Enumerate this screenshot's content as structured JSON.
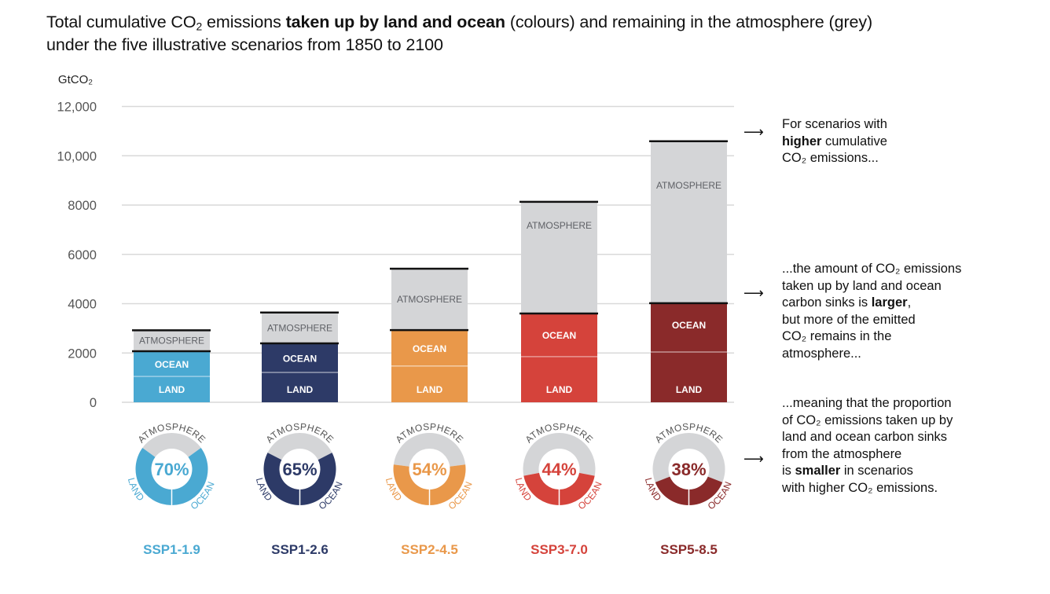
{
  "title": {
    "part1": "Total cumulative CO",
    "sub": "2",
    "part2": " emissions ",
    "bold": "taken up by land and ocean",
    "part3": " (colours) and remaining in the atmosphere (grey)",
    "line2": "under the five illustrative scenarios from 1850 to 2100"
  },
  "annotations": [
    {
      "arrow": "⟶",
      "lines": [
        {
          "pre": "For scenarios with",
          "bold": "",
          "post": ""
        },
        {
          "pre": "",
          "bold": "higher",
          "post": " cumulative"
        },
        {
          "pre": "CO₂ emissions...",
          "bold": "",
          "post": ""
        }
      ]
    },
    {
      "arrow": "⟶",
      "lines": [
        {
          "pre": "...the amount of CO₂ emissions",
          "bold": "",
          "post": ""
        },
        {
          "pre": "taken up by land and ocean",
          "bold": "",
          "post": ""
        },
        {
          "pre": "carbon sinks is ",
          "bold": "larger",
          "post": ","
        },
        {
          "pre": "but more of the emitted",
          "bold": "",
          "post": ""
        },
        {
          "pre": "CO₂ remains in the",
          "bold": "",
          "post": ""
        },
        {
          "pre": "atmosphere...",
          "bold": "",
          "post": ""
        }
      ]
    },
    {
      "arrow": "⟶",
      "lines": [
        {
          "pre": "...meaning that the proportion",
          "bold": "",
          "post": ""
        },
        {
          "pre": "of CO₂ emissions taken up by",
          "bold": "",
          "post": ""
        },
        {
          "pre": "land and ocean carbon sinks",
          "bold": "",
          "post": ""
        },
        {
          "pre": "from the atmosphere",
          "bold": "",
          "post": ""
        },
        {
          "pre": "is ",
          "bold": "smaller",
          "post": " in scenarios"
        },
        {
          "pre": "with higher CO₂ emissions.",
          "bold": "",
          "post": ""
        }
      ]
    }
  ],
  "chart_data": {
    "type": "bar",
    "stacked": true,
    "title": "Total cumulative CO2 emissions taken up by land and ocean (colours) and remaining in the atmosphere (grey) under the five illustrative scenarios from 1850 to 2100",
    "ylabel": "GtCO₂",
    "xlabel": "",
    "ylim": [
      0,
      12000
    ],
    "yticks": [
      0,
      2000,
      4000,
      6000,
      8000,
      10000,
      12000
    ],
    "ytick_labels": [
      "0",
      "2000",
      "4000",
      "6000",
      "8000",
      "10,000",
      "12,000"
    ],
    "grid": true,
    "segment_labels": {
      "land": "LAND",
      "ocean": "OCEAN",
      "atmosphere": "ATMOSPHERE"
    },
    "categories": [
      "SSP1-1.9",
      "SSP1-2.6",
      "SSP2-4.5",
      "SSP3-7.0",
      "SSP5-8.5"
    ],
    "colors": [
      "#4aa9d2",
      "#2d3a67",
      "#e9984a",
      "#d5433b",
      "#8a2a2a"
    ],
    "atmosphere_color": "#d4d5d7",
    "series": [
      {
        "name": "Land",
        "values": [
          1050,
          1210,
          1470,
          1850,
          2040
        ]
      },
      {
        "name": "Ocean",
        "values": [
          1020,
          1180,
          1460,
          1750,
          1980
        ]
      },
      {
        "name": "Atmosphere",
        "values": [
          850,
          1250,
          2490,
          4530,
          6570
        ]
      }
    ],
    "totals": [
      2920,
      3640,
      5420,
      8130,
      10590
    ],
    "donuts": {
      "type": "pie",
      "slice_labels": [
        "LAND",
        "OCEAN",
        "ATMOSPHERE"
      ],
      "sink_fraction_percent": [
        70,
        65,
        54,
        44,
        38
      ],
      "center_labels": [
        "70%",
        "65%",
        "54%",
        "44%",
        "38%"
      ]
    }
  }
}
